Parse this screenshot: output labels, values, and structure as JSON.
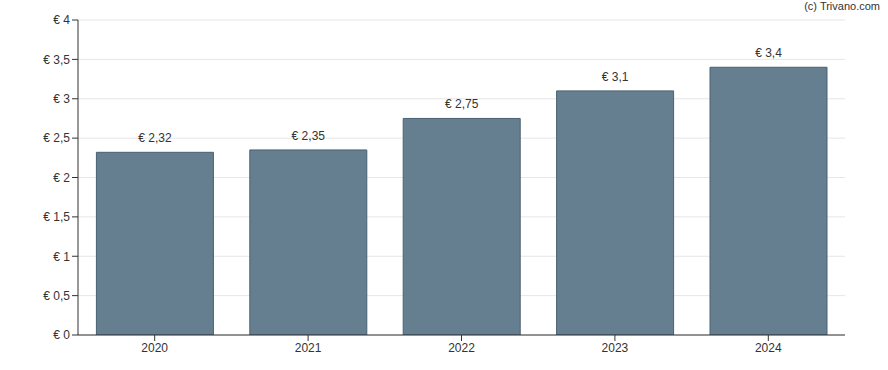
{
  "chart_data": {
    "type": "bar",
    "annotations": [
      "(c) Trivano.com"
    ],
    "categories": [
      "2020",
      "2021",
      "2022",
      "2023",
      "2024"
    ],
    "values": [
      2.32,
      2.35,
      2.75,
      3.1,
      3.4
    ],
    "value_labels": [
      "€ 2,32",
      "€ 2,35",
      "€ 2,75",
      "€ 3,1",
      "€ 3,4"
    ],
    "data_labels": true,
    "color": "#657f91",
    "ylim": [
      0,
      4
    ],
    "yticks": [
      {
        "value": 0,
        "label": "€ 0"
      },
      {
        "value": 0.5,
        "label": "€ 0,5"
      },
      {
        "value": 1,
        "label": "€ 1"
      },
      {
        "value": 1.5,
        "label": "€ 1,5"
      },
      {
        "value": 2,
        "label": "€ 2"
      },
      {
        "value": 2.5,
        "label": "€ 2,5"
      },
      {
        "value": 3,
        "label": "€ 3"
      },
      {
        "value": 3.5,
        "label": "€ 3,5"
      },
      {
        "value": 4,
        "label": "€ 4"
      }
    ],
    "grid": true
  }
}
